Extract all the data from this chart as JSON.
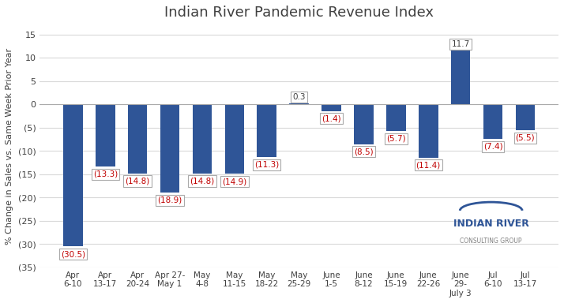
{
  "title": "Indian River Pandemic Revenue Index",
  "ylabel": "% Change in Sales vs. Same Week Prior Year",
  "categories": [
    "Apr\n6-10",
    "Apr\n13-17",
    "Apr\n20-24",
    "Apr 27-\nMay 1",
    "May\n4-8",
    "May\n11-15",
    "May\n18-22",
    "May\n25-29",
    "June\n1-5",
    "June\n8-12",
    "June\n15-19",
    "June\n22-26",
    "June\n29-\nJuly 3",
    "Jul\n6-10",
    "Jul\n13-17"
  ],
  "values": [
    -30.5,
    -13.3,
    -14.8,
    -18.9,
    -14.8,
    -14.9,
    -11.3,
    0.3,
    -1.4,
    -8.5,
    -5.7,
    -11.4,
    11.7,
    -7.4,
    -5.5
  ],
  "bar_color": "#2f5597",
  "label_color_negative": "#c00000",
  "label_color_positive": "#404040",
  "ylim": [
    -35,
    17
  ],
  "yticks": [
    15,
    10,
    5,
    0,
    -5,
    -10,
    -15,
    -20,
    -25,
    -30,
    -35
  ],
  "ytick_labels": [
    "15",
    "10",
    "5",
    "0",
    "(5)",
    "(10)",
    "(15)",
    "(20)",
    "(25)",
    "(30)",
    "(35)"
  ],
  "background_color": "#ffffff",
  "grid_color": "#d9d9d9",
  "title_fontsize": 13,
  "label_fontsize": 7.5,
  "tick_fontsize": 8,
  "ylabel_fontsize": 8
}
